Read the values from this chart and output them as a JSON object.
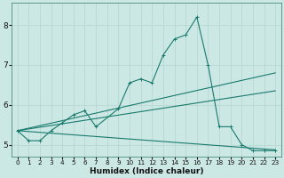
{
  "xlabel": "Humidex (Indice chaleur)",
  "xlim": [
    -0.5,
    23.5
  ],
  "ylim": [
    4.7,
    8.55
  ],
  "bg_color": "#cce8e4",
  "grid_color": "#b8d8d4",
  "line_color": "#1a7a6e",
  "x_ticks": [
    0,
    1,
    2,
    3,
    4,
    5,
    6,
    7,
    8,
    9,
    10,
    11,
    12,
    13,
    14,
    15,
    16,
    17,
    18,
    19,
    20,
    21,
    22,
    23
  ],
  "y_ticks": [
    5,
    6,
    7,
    8
  ],
  "series": [
    {
      "x": [
        0,
        1,
        2,
        3,
        4,
        5,
        6,
        7,
        9,
        10,
        11,
        12,
        13,
        14,
        15,
        16,
        17,
        18,
        19,
        20,
        21,
        22,
        23
      ],
      "y": [
        5.35,
        5.1,
        5.1,
        5.35,
        5.55,
        5.75,
        5.85,
        5.45,
        5.9,
        6.55,
        6.65,
        6.55,
        7.25,
        7.65,
        7.75,
        8.2,
        7.0,
        5.45,
        5.45,
        5.0,
        4.85,
        4.85,
        4.85
      ],
      "marker": true
    },
    {
      "x": [
        0,
        23
      ],
      "y": [
        5.35,
        6.8
      ],
      "marker": false
    },
    {
      "x": [
        0,
        23
      ],
      "y": [
        5.35,
        6.35
      ],
      "marker": false
    },
    {
      "x": [
        0,
        23
      ],
      "y": [
        5.35,
        4.87
      ],
      "marker": false
    }
  ]
}
